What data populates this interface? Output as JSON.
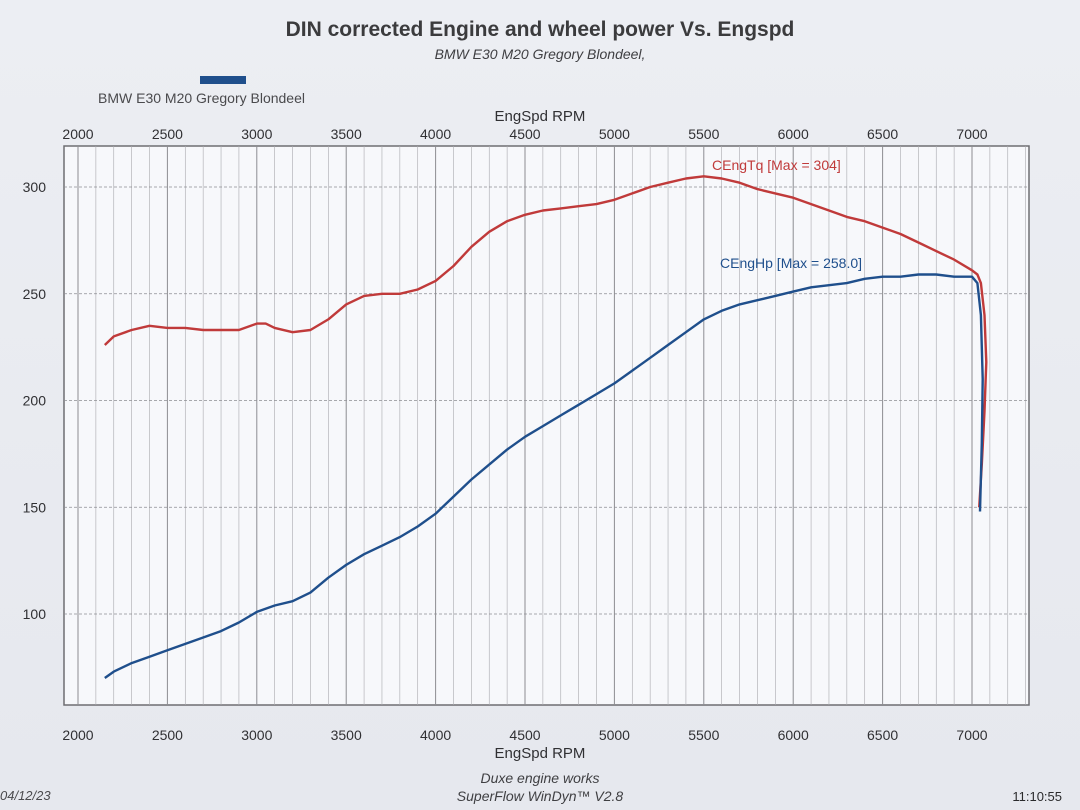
{
  "header": {
    "title": "DIN corrected Engine and wheel power Vs. Engspd",
    "subtitle": "BMW E30 M20 Gregory Blondeel,"
  },
  "legend": {
    "label": "BMW E30 M20 Gregory Blondeel",
    "color": "#1f4f8c"
  },
  "footer": {
    "line1": "Duxe engine works",
    "line2": "SuperFlow WinDyn™ V2.8",
    "date": "04/12/23",
    "time": "11:10:55"
  },
  "chart_data": {
    "type": "line",
    "xlabel": "EngSpd  RPM",
    "xlim": [
      2000,
      7000
    ],
    "ylim": [
      70,
      320
    ],
    "x_ticks": [
      2000,
      2500,
      3000,
      3500,
      4000,
      4500,
      5000,
      5500,
      6000,
      6500,
      7000
    ],
    "y_ticks": [
      100,
      150,
      200,
      250,
      300
    ],
    "grid": true,
    "series": [
      {
        "name": "CEngTq [Max = 304]",
        "color": "#c03a3a",
        "points": [
          [
            2150,
            226
          ],
          [
            2200,
            230
          ],
          [
            2300,
            233
          ],
          [
            2400,
            235
          ],
          [
            2500,
            234
          ],
          [
            2600,
            234
          ],
          [
            2700,
            233
          ],
          [
            2800,
            233
          ],
          [
            2900,
            233
          ],
          [
            3000,
            236
          ],
          [
            3050,
            236
          ],
          [
            3100,
            234
          ],
          [
            3200,
            232
          ],
          [
            3300,
            233
          ],
          [
            3400,
            238
          ],
          [
            3500,
            245
          ],
          [
            3600,
            249
          ],
          [
            3700,
            250
          ],
          [
            3800,
            250
          ],
          [
            3900,
            252
          ],
          [
            4000,
            256
          ],
          [
            4100,
            263
          ],
          [
            4200,
            272
          ],
          [
            4300,
            279
          ],
          [
            4400,
            284
          ],
          [
            4500,
            287
          ],
          [
            4600,
            289
          ],
          [
            4700,
            290
          ],
          [
            4800,
            291
          ],
          [
            4900,
            292
          ],
          [
            5000,
            294
          ],
          [
            5100,
            297
          ],
          [
            5200,
            300
          ],
          [
            5300,
            302
          ],
          [
            5400,
            304
          ],
          [
            5500,
            305
          ],
          [
            5600,
            304
          ],
          [
            5700,
            302
          ],
          [
            5800,
            299
          ],
          [
            5900,
            297
          ],
          [
            6000,
            295
          ],
          [
            6100,
            292
          ],
          [
            6200,
            289
          ],
          [
            6300,
            286
          ],
          [
            6400,
            284
          ],
          [
            6500,
            281
          ],
          [
            6600,
            278
          ],
          [
            6700,
            274
          ],
          [
            6800,
            270
          ],
          [
            6900,
            266
          ],
          [
            7000,
            261
          ],
          [
            7030,
            259
          ],
          [
            7050,
            255
          ],
          [
            7070,
            240
          ],
          [
            7080,
            218
          ],
          [
            7070,
            195
          ],
          [
            7055,
            170
          ],
          [
            7040,
            150
          ]
        ]
      },
      {
        "name": "CEngHp [Max = 258.0]",
        "color": "#1f4f8c",
        "points": [
          [
            2150,
            70
          ],
          [
            2200,
            73
          ],
          [
            2300,
            77
          ],
          [
            2400,
            80
          ],
          [
            2500,
            83
          ],
          [
            2600,
            86
          ],
          [
            2700,
            89
          ],
          [
            2800,
            92
          ],
          [
            2900,
            96
          ],
          [
            3000,
            101
          ],
          [
            3100,
            104
          ],
          [
            3200,
            106
          ],
          [
            3300,
            110
          ],
          [
            3400,
            117
          ],
          [
            3500,
            123
          ],
          [
            3600,
            128
          ],
          [
            3700,
            132
          ],
          [
            3800,
            136
          ],
          [
            3900,
            141
          ],
          [
            4000,
            147
          ],
          [
            4100,
            155
          ],
          [
            4200,
            163
          ],
          [
            4300,
            170
          ],
          [
            4400,
            177
          ],
          [
            4500,
            183
          ],
          [
            4600,
            188
          ],
          [
            4700,
            193
          ],
          [
            4800,
            198
          ],
          [
            4900,
            203
          ],
          [
            5000,
            208
          ],
          [
            5100,
            214
          ],
          [
            5200,
            220
          ],
          [
            5300,
            226
          ],
          [
            5400,
            232
          ],
          [
            5500,
            238
          ],
          [
            5600,
            242
          ],
          [
            5700,
            245
          ],
          [
            5800,
            247
          ],
          [
            5900,
            249
          ],
          [
            6000,
            251
          ],
          [
            6100,
            253
          ],
          [
            6200,
            254
          ],
          [
            6300,
            255
          ],
          [
            6400,
            257
          ],
          [
            6500,
            258
          ],
          [
            6600,
            258
          ],
          [
            6700,
            259
          ],
          [
            6800,
            259
          ],
          [
            6900,
            258
          ],
          [
            7000,
            258
          ],
          [
            7030,
            255
          ],
          [
            7050,
            240
          ],
          [
            7060,
            210
          ],
          [
            7055,
            180
          ],
          [
            7045,
            148
          ]
        ]
      }
    ]
  }
}
